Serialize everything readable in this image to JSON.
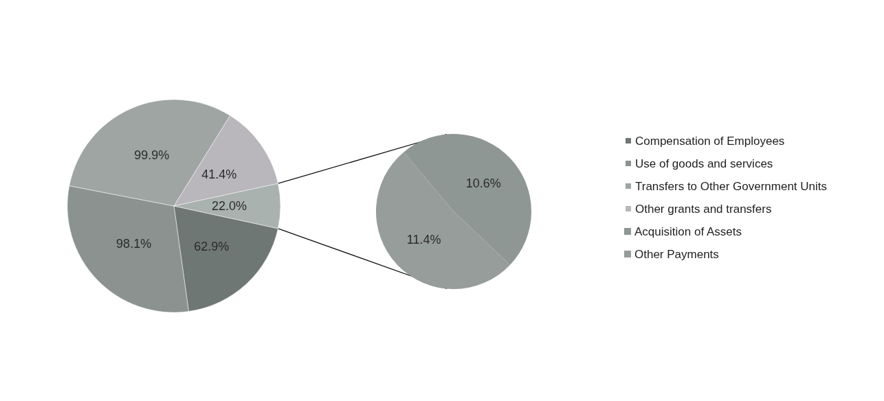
{
  "chart_data": [
    {
      "type": "pie",
      "categories": [
        "Compensation of Employees",
        "Use of goods and services",
        "Transfers to Other Government Units",
        "Other grants and transfers",
        null
      ],
      "values": [
        62.9,
        98.1,
        99.9,
        41.4,
        22.0
      ],
      "value_labels": [
        "62.9%",
        "98.1%",
        "99.9%",
        "41.4%",
        "22.0%"
      ],
      "colors": [
        "#6f7775",
        "#8b9290",
        "#9ea5a2",
        "#b9b6bc",
        "#aab2af"
      ],
      "legend": "right"
    },
    {
      "type": "pie",
      "categories": [
        "Acquisition of Assets",
        "Other Payments"
      ],
      "values": [
        10.6,
        11.4
      ],
      "value_labels": [
        "10.6%",
        "11.4%"
      ],
      "colors": [
        "#8f9795",
        "#979d9b"
      ],
      "legend": "right"
    }
  ]
}
